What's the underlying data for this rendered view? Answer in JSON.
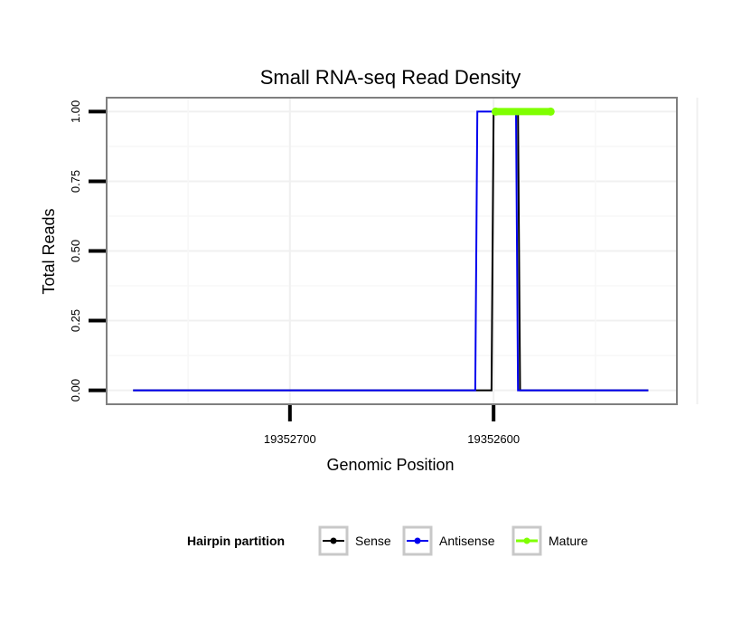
{
  "chart_data": {
    "type": "line",
    "title": "Small RNA-seq Read Density",
    "xlabel": "Genomic Position",
    "ylabel": "Total Reads",
    "x_reversed": true,
    "xlim": [
      19352790,
      19352510
    ],
    "ylim": [
      -0.05,
      1.05
    ],
    "x_ticks": [
      19352700,
      19352600
    ],
    "x_tick_labels": [
      "19352700",
      "19352600"
    ],
    "y_ticks": [
      0,
      0.25,
      0.5,
      0.75,
      1
    ],
    "y_tick_labels": [
      "0.00",
      "0.25",
      "0.50",
      "0.75",
      "1.00"
    ],
    "grid": true,
    "legend": {
      "title": "Hairpin partition",
      "position": "bottom",
      "entries": [
        "Sense",
        "Antisense",
        "Mature"
      ]
    },
    "series": [
      {
        "name": "Sense",
        "color": "#000000",
        "x": [
          19352777,
          19352601,
          19352600,
          19352588,
          19352587,
          19352573,
          19352572,
          19352524
        ],
        "y": [
          0,
          0,
          1,
          1,
          0,
          0,
          0,
          0
        ]
      },
      {
        "name": "Antisense",
        "color": "#0000ee",
        "x": [
          19352777,
          19352609,
          19352608,
          19352589,
          19352588,
          19352524
        ],
        "y": [
          0,
          0,
          1,
          1,
          0,
          0
        ]
      },
      {
        "name": "Mature",
        "color": "#7fff00",
        "x": [
          19352599,
          19352572
        ],
        "y": [
          1,
          1
        ]
      }
    ]
  }
}
